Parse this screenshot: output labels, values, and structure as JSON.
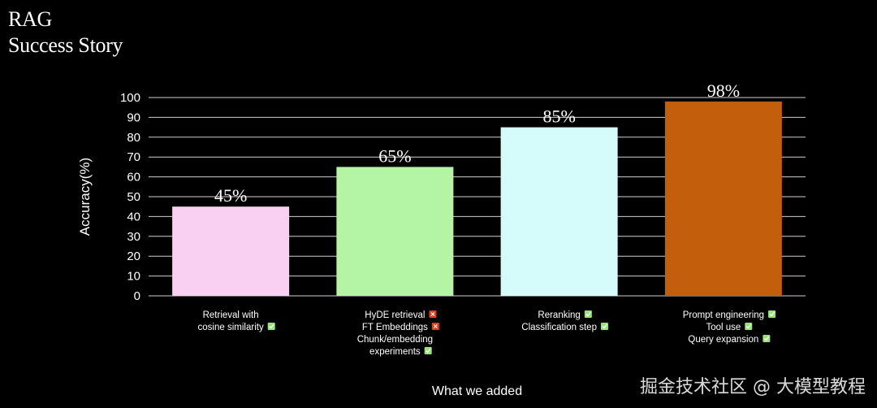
{
  "header": {
    "title_line1": "RAG",
    "title_line2": "Success Story"
  },
  "chart_data": {
    "type": "bar",
    "categories": [
      [
        "Retrieval with",
        "cosine similarity"
      ],
      [
        "HyDE retrieval",
        "FT Embeddings",
        "Chunk/embedding",
        "experiments"
      ],
      [
        "Reranking",
        "Classification step"
      ],
      [
        "Prompt engineering",
        "Tool use",
        "Query expansion"
      ]
    ],
    "category_marks": [
      [
        "",
        "check"
      ],
      [
        "cross",
        "cross",
        "",
        "check"
      ],
      [
        "check",
        "check"
      ],
      [
        "check",
        "check",
        "check"
      ]
    ],
    "values": [
      45,
      65,
      85,
      98
    ],
    "data_labels": [
      "45%",
      "65%",
      "85%",
      "98%"
    ],
    "bar_colors": [
      "#f9cff2",
      "#b3f5a5",
      "#d6fbfb",
      "#c35e0c"
    ],
    "title": "",
    "xlabel": "What we added",
    "ylabel": "Accuracy(%)",
    "ylim": [
      0,
      100
    ],
    "yticks": [
      0,
      10,
      20,
      30,
      40,
      50,
      60,
      70,
      80,
      90,
      100
    ],
    "grid": true,
    "mark_colors": {
      "check": "#9be27a",
      "cross": "#d9421f"
    }
  },
  "watermark": "掘金技术社区 @ 大模型教程"
}
